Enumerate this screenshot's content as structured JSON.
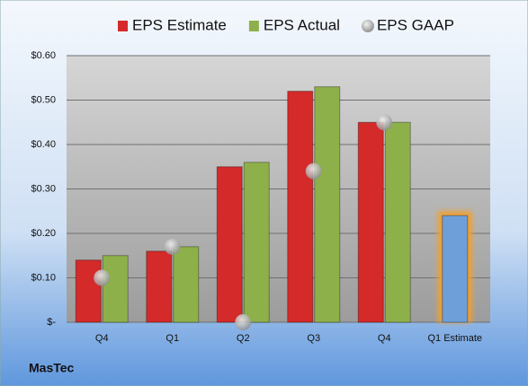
{
  "chart_data": {
    "type": "bar",
    "categories": [
      "Q4",
      "Q1",
      "Q2",
      "Q3",
      "Q4",
      "Q1 Estimate"
    ],
    "series": [
      {
        "name": "EPS Estimate",
        "color": "#d42a2a",
        "values": [
          0.14,
          0.16,
          0.35,
          0.52,
          0.45,
          0.24
        ],
        "colors": [
          "#d42a2a",
          "#d42a2a",
          "#d42a2a",
          "#d42a2a",
          "#d42a2a",
          "#6f9fd8"
        ]
      },
      {
        "name": "EPS Actual",
        "color": "#8db04a",
        "values": [
          0.15,
          0.17,
          0.36,
          0.53,
          0.45,
          null
        ]
      },
      {
        "name": "EPS GAAP",
        "color": "#b0b0b0",
        "values": [
          0.1,
          0.17,
          0.0,
          0.34,
          0.45,
          null
        ],
        "marker": "bubble"
      }
    ],
    "ylim": [
      0,
      0.6
    ],
    "yticks": [
      {
        "value": 0,
        "label": "$-"
      },
      {
        "value": 0.1,
        "label": "$0.10"
      },
      {
        "value": 0.2,
        "label": "$0.20"
      },
      {
        "value": 0.3,
        "label": "$0.30"
      },
      {
        "value": 0.4,
        "label": "$0.40"
      },
      {
        "value": 0.5,
        "label": "$0.50"
      },
      {
        "value": 0.6,
        "label": "$0.60"
      }
    ],
    "grid": true,
    "legend": "top",
    "company": "MasTec"
  }
}
